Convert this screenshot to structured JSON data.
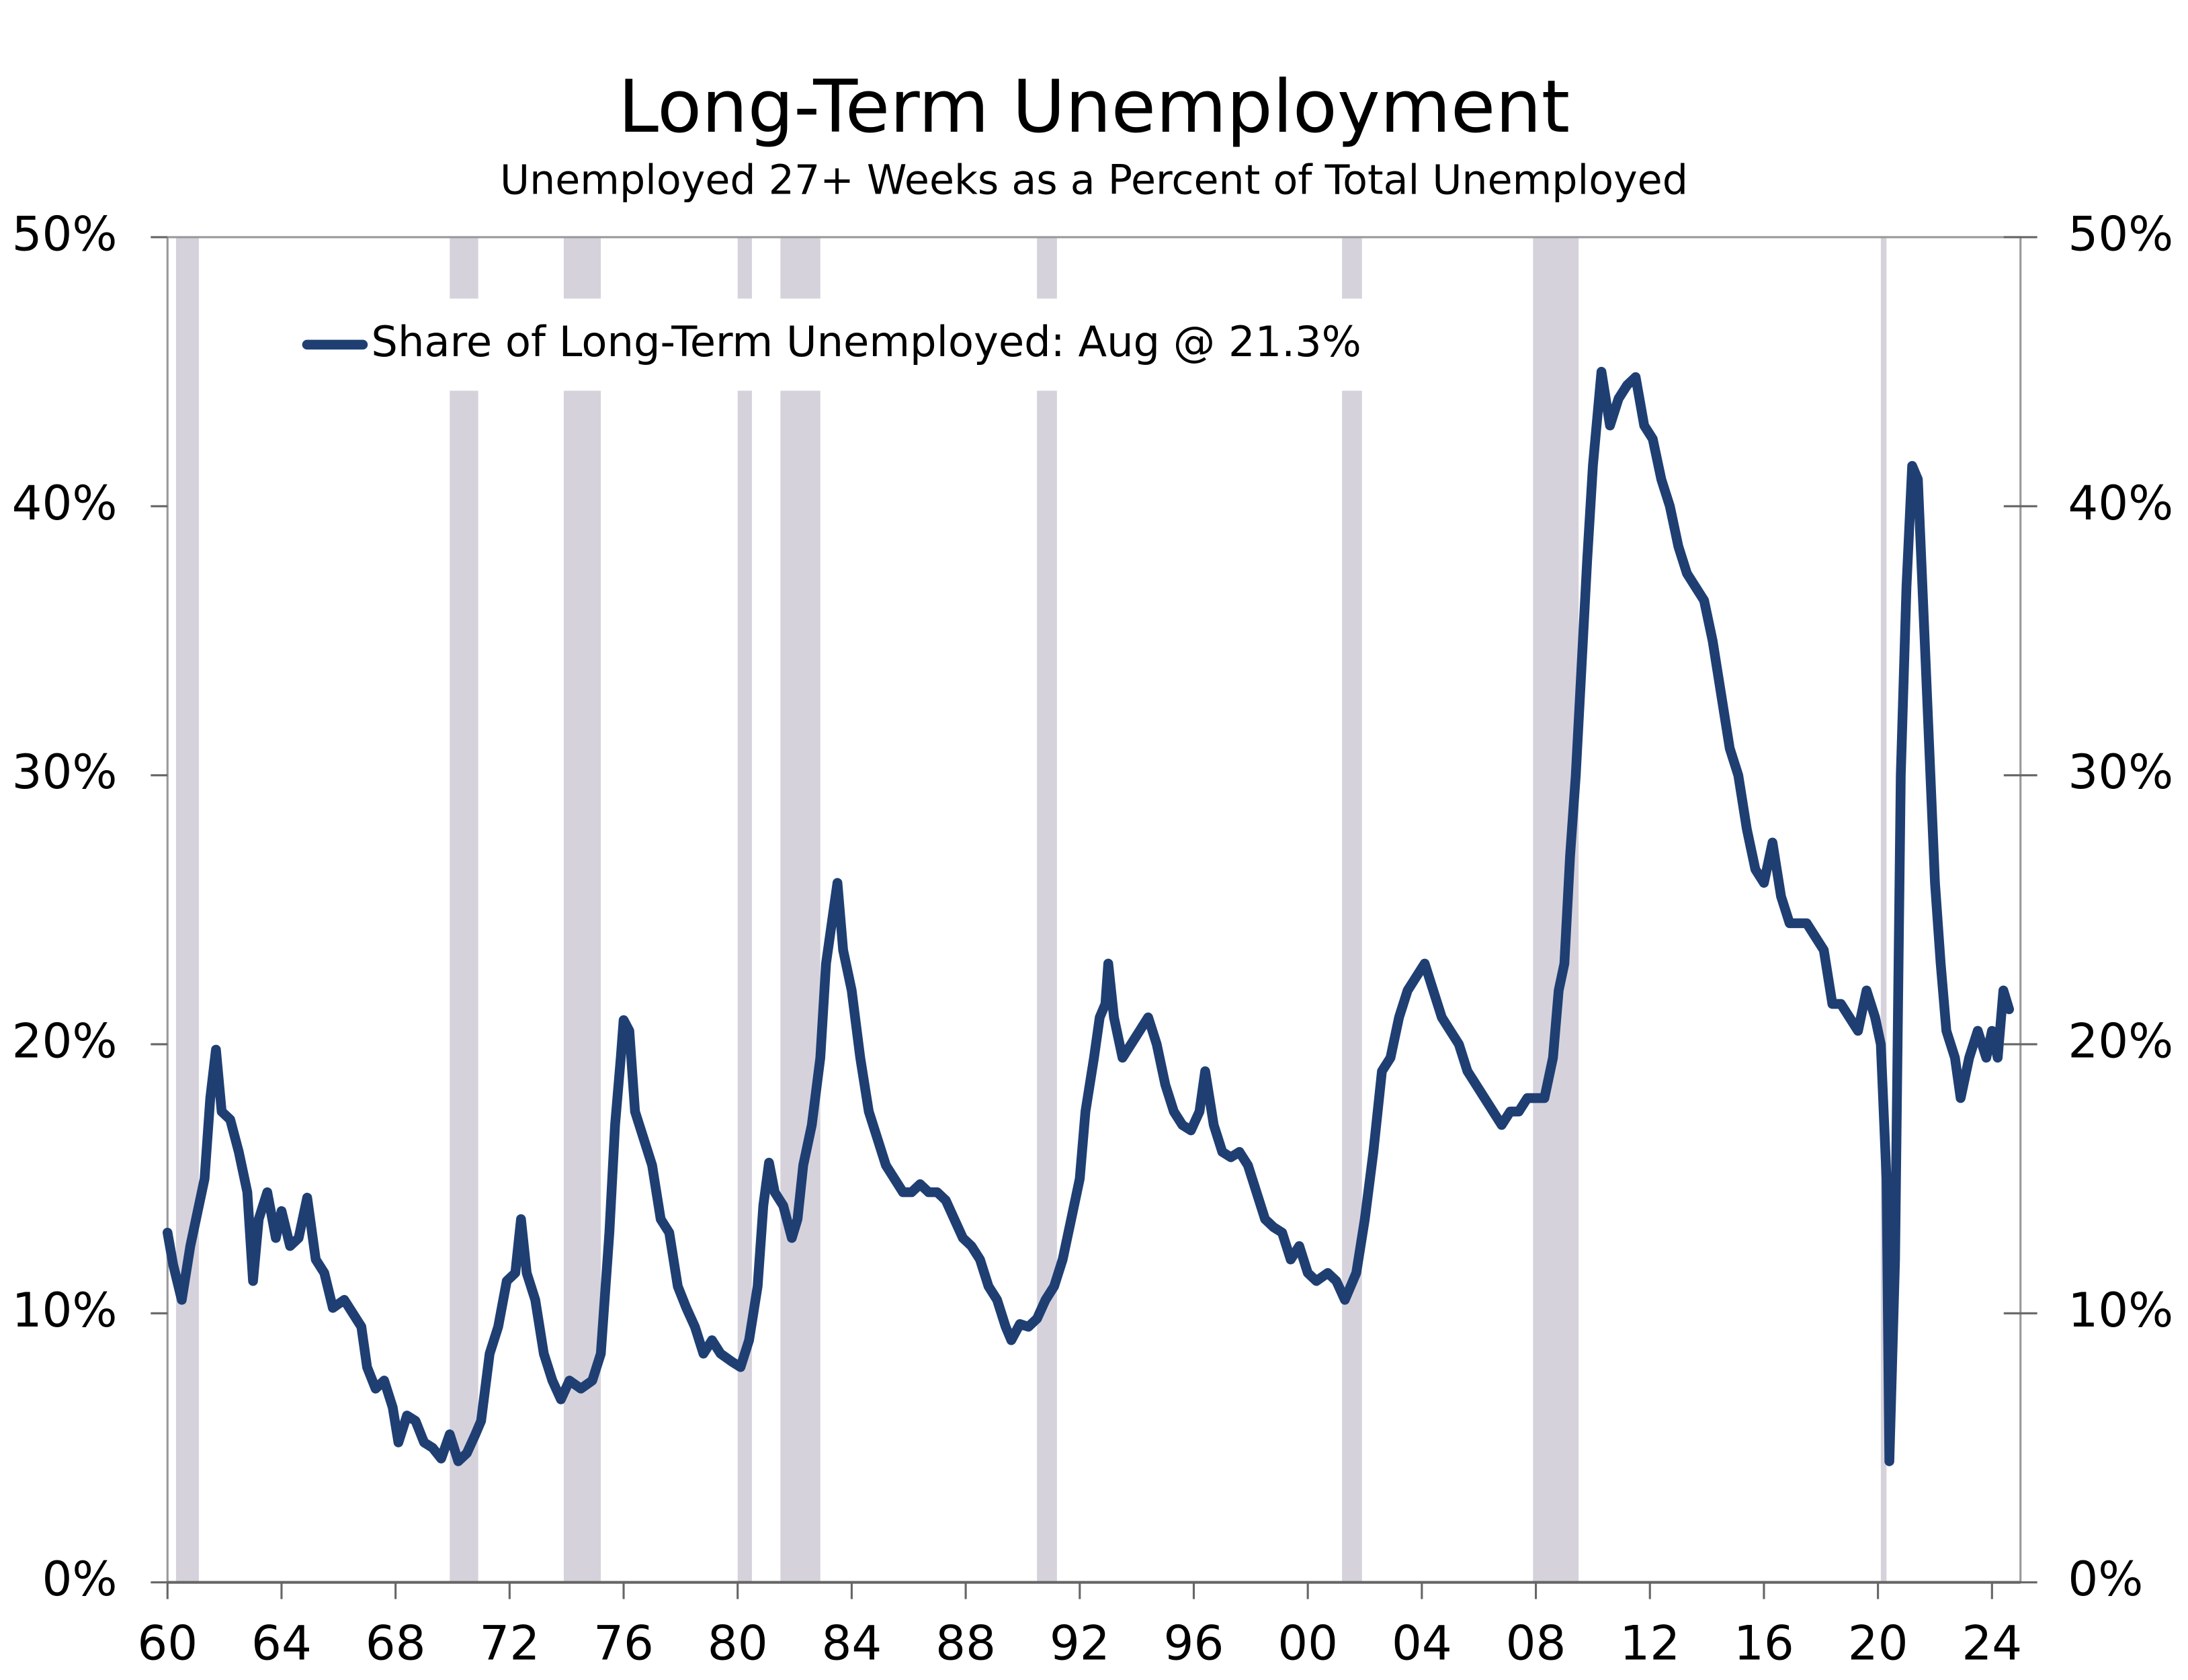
{
  "chart_data": {
    "type": "line",
    "title": "Long-Term Unemployment",
    "subtitle": "Unemployed 27+ Weeks  as a Percent of Total Unemployed",
    "x": [
      1960.0,
      1960.2,
      1960.5,
      1960.8,
      1961.0,
      1961.3,
      1961.5,
      1961.7,
      1961.9,
      1962.2,
      1962.5,
      1962.8,
      1963.0,
      1963.2,
      1963.5,
      1963.8,
      1964.0,
      1964.3,
      1964.6,
      1964.9,
      1965.2,
      1965.5,
      1965.8,
      1966.2,
      1966.5,
      1966.8,
      1967.0,
      1967.3,
      1967.6,
      1967.9,
      1968.1,
      1968.4,
      1968.7,
      1969.0,
      1969.3,
      1969.6,
      1969.9,
      1970.2,
      1970.5,
      1970.8,
      1971.0,
      1971.3,
      1971.6,
      1971.9,
      1972.2,
      1972.4,
      1972.6,
      1972.9,
      1973.2,
      1973.5,
      1973.8,
      1974.1,
      1974.5,
      1974.9,
      1975.2,
      1975.5,
      1975.7,
      1975.9,
      1976.0,
      1976.2,
      1976.4,
      1976.7,
      1977.0,
      1977.3,
      1977.6,
      1977.9,
      1978.2,
      1978.5,
      1978.8,
      1979.1,
      1979.4,
      1979.8,
      1980.1,
      1980.4,
      1980.7,
      1980.9,
      1981.1,
      1981.3,
      1981.6,
      1981.9,
      1982.1,
      1982.3,
      1982.6,
      1982.9,
      1983.1,
      1983.3,
      1983.5,
      1983.7,
      1984.0,
      1984.3,
      1984.6,
      1984.9,
      1985.2,
      1985.5,
      1985.8,
      1986.1,
      1986.4,
      1986.7,
      1987.0,
      1987.3,
      1987.6,
      1987.9,
      1988.2,
      1988.5,
      1988.8,
      1989.1,
      1989.4,
      1989.6,
      1989.9,
      1990.2,
      1990.5,
      1990.8,
      1991.1,
      1991.4,
      1991.7,
      1992.0,
      1992.2,
      1992.5,
      1992.7,
      1992.9,
      1993.0,
      1993.2,
      1993.5,
      1993.8,
      1994.1,
      1994.4,
      1994.7,
      1995.0,
      1995.3,
      1995.6,
      1995.9,
      1996.2,
      1996.4,
      1996.7,
      1997.0,
      1997.3,
      1997.6,
      1997.9,
      1998.2,
      1998.5,
      1998.8,
      1999.1,
      1999.4,
      1999.7,
      2000.0,
      2000.3,
      2000.7,
      2001.0,
      2001.3,
      2001.7,
      2002.0,
      2002.3,
      2002.6,
      2002.9,
      2003.2,
      2003.5,
      2003.8,
      2004.1,
      2004.4,
      2004.7,
      2005.0,
      2005.3,
      2005.6,
      2005.9,
      2006.2,
      2006.5,
      2006.8,
      2007.1,
      2007.4,
      2007.7,
      2008.0,
      2008.3,
      2008.6,
      2008.8,
      2009.0,
      2009.2,
      2009.4,
      2009.6,
      2009.8,
      2010.0,
      2010.3,
      2010.6,
      2010.9,
      2011.2,
      2011.5,
      2011.8,
      2012.1,
      2012.4,
      2012.7,
      2013.0,
      2013.3,
      2013.6,
      2013.9,
      2014.2,
      2014.5,
      2014.8,
      2015.1,
      2015.4,
      2015.7,
      2016.0,
      2016.3,
      2016.6,
      2016.9,
      2017.2,
      2017.5,
      2017.8,
      2018.1,
      2018.4,
      2018.7,
      2019.0,
      2019.3,
      2019.6,
      2019.9,
      2020.1,
      2020.3,
      2020.4,
      2020.6,
      2020.8,
      2021.0,
      2021.2,
      2021.4,
      2021.6,
      2021.8,
      2022.0,
      2022.2,
      2022.4,
      2022.7,
      2022.9,
      2023.2,
      2023.5,
      2023.8,
      2024.0,
      2024.2,
      2024.4,
      2024.6
    ],
    "series": [
      {
        "name": "Share of Long-Term Unemployed: Aug @ 21.3%",
        "color": "#1f3f73",
        "values": [
          13,
          11.8,
          10.5,
          12.5,
          13.5,
          15,
          18,
          19.8,
          17.5,
          17.2,
          16,
          14.5,
          11.2,
          13.5,
          14.5,
          12.8,
          13.8,
          12.5,
          12.8,
          14.3,
          12,
          11.5,
          10.2,
          10.5,
          10,
          9.5,
          8,
          7.2,
          7.5,
          6.5,
          5.2,
          6.2,
          6.0,
          5.2,
          5.0,
          4.6,
          5.5,
          4.5,
          4.8,
          5.5,
          6,
          8.5,
          9.5,
          11.2,
          11.5,
          13.5,
          11.5,
          10.5,
          8.5,
          7.5,
          6.8,
          7.5,
          7.2,
          7.5,
          8.5,
          13,
          17,
          19.5,
          20.9,
          20.5,
          17.5,
          16.5,
          15.5,
          13.5,
          13,
          11,
          10.2,
          9.5,
          8.5,
          9,
          8.5,
          8.2,
          8,
          9,
          11,
          14,
          15.6,
          14.5,
          14,
          12.8,
          13.5,
          15.5,
          17,
          19.5,
          23,
          24.5,
          26,
          23.5,
          22,
          19.5,
          17.5,
          16.5,
          15.5,
          15,
          14.5,
          14.5,
          14.8,
          14.5,
          14.5,
          14.2,
          13.5,
          12.8,
          12.5,
          12,
          11,
          10.5,
          9.5,
          9,
          9.6,
          9.5,
          9.8,
          10.5,
          11,
          12,
          13.5,
          15,
          17.5,
          19.5,
          21,
          21.5,
          23,
          21,
          19.5,
          20,
          20.5,
          21,
          20,
          18.5,
          17.5,
          17,
          16.8,
          17.5,
          19,
          17,
          16,
          15.8,
          16,
          15.5,
          14.5,
          13.5,
          13.2,
          13,
          12,
          12.5,
          11.5,
          11.2,
          11.5,
          11.2,
          10.5,
          11.5,
          13.5,
          16,
          19,
          19.5,
          21,
          22,
          22.5,
          23,
          22,
          21,
          20.5,
          20,
          19,
          18.5,
          18,
          17.5,
          17,
          17.5,
          17.5,
          18,
          18,
          18,
          19.5,
          22,
          23,
          27,
          30,
          34,
          38,
          41.5,
          45,
          43,
          44,
          44.5,
          44.8,
          43,
          42.5,
          41,
          40,
          38.5,
          37.5,
          37,
          36.5,
          35,
          33,
          31,
          30,
          28,
          26.5,
          26,
          27.5,
          25.5,
          24.5,
          24.5,
          24.5,
          24,
          23.5,
          21.5,
          21.5,
          21,
          20.5,
          22,
          21,
          20,
          15,
          4.5,
          12,
          30,
          37,
          41.5,
          41,
          36,
          31,
          26,
          23,
          20.5,
          19.5,
          18,
          19.5,
          20.5,
          19.5,
          20.5,
          19.5,
          22,
          21.3
        ]
      }
    ],
    "recessions": [
      [
        1960.3,
        1961.1
      ],
      [
        1969.9,
        1970.9
      ],
      [
        1973.9,
        1975.2
      ],
      [
        1980.0,
        1980.5
      ],
      [
        1981.5,
        1982.9
      ],
      [
        1990.5,
        1991.2
      ],
      [
        2001.2,
        2001.9
      ],
      [
        2007.9,
        2009.5
      ],
      [
        2020.1,
        2020.3
      ]
    ],
    "recession_color": "#d6d2dc",
    "xlim": [
      1960,
      2025
    ],
    "xticks": [
      {
        "value": 1960,
        "label": "60"
      },
      {
        "value": 1964,
        "label": "64"
      },
      {
        "value": 1968,
        "label": "68"
      },
      {
        "value": 1972,
        "label": "72"
      },
      {
        "value": 1976,
        "label": "76"
      },
      {
        "value": 1980,
        "label": "80"
      },
      {
        "value": 1984,
        "label": "84"
      },
      {
        "value": 1988,
        "label": "88"
      },
      {
        "value": 1992,
        "label": "92"
      },
      {
        "value": 1996,
        "label": "96"
      },
      {
        "value": 2000,
        "label": "00"
      },
      {
        "value": 2004,
        "label": "04"
      },
      {
        "value": 2008,
        "label": "08"
      },
      {
        "value": 2012,
        "label": "12"
      },
      {
        "value": 2016,
        "label": "16"
      },
      {
        "value": 2020,
        "label": "20"
      },
      {
        "value": 2024,
        "label": "24"
      }
    ],
    "ylim": [
      0,
      50
    ],
    "yticks": [
      {
        "value": 0,
        "label": "0%"
      },
      {
        "value": 10,
        "label": "10%"
      },
      {
        "value": 20,
        "label": "20%"
      },
      {
        "value": 30,
        "label": "30%"
      },
      {
        "value": 40,
        "label": "40%"
      },
      {
        "value": 50,
        "label": "50%"
      }
    ],
    "y2lim": [
      0,
      50
    ],
    "y2ticks": [
      {
        "value": 0,
        "label": "0%"
      },
      {
        "value": 10,
        "label": "10%"
      },
      {
        "value": 20,
        "label": "20%"
      },
      {
        "value": 30,
        "label": "30%"
      },
      {
        "value": 40,
        "label": "40%"
      },
      {
        "value": 50,
        "label": "50%"
      }
    ],
    "legend": "upper left",
    "grid": false
  }
}
